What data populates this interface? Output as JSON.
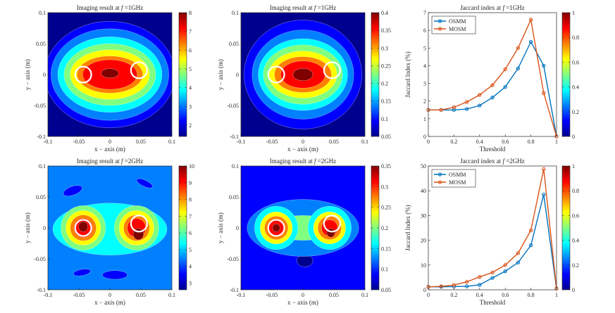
{
  "figure": {
    "colormap_stops": [
      "#00008f",
      "#0000ff",
      "#0080ff",
      "#00ffff",
      "#80ff80",
      "#ffff00",
      "#ff8000",
      "#ff0000",
      "#800000"
    ]
  },
  "chart_data": [
    {
      "id": "p1",
      "type": "heatmap",
      "title_prefix": "Imaging result at ",
      "title_var": "f",
      "title_suffix": " =1GHz",
      "xlabel": "x − axis (m)",
      "ylabel": "y − axis (m)",
      "xlim": [
        -0.1,
        0.1
      ],
      "ylim": [
        -0.1,
        0.1
      ],
      "xticks": [
        "-0.1",
        "-0.05",
        "0",
        "0.05",
        "0.1"
      ],
      "yticks": [
        "0.1",
        "0.05",
        "0",
        "-0.05",
        "-0.1"
      ],
      "colorbar": {
        "min": 1.4,
        "max": 8,
        "ticks": [
          2,
          3,
          4,
          5,
          6,
          7,
          8
        ]
      },
      "target_circles": [
        {
          "x": -0.043,
          "y": 0.0,
          "r": 0.013
        },
        {
          "x": 0.047,
          "y": 0.007,
          "r": 0.013
        }
      ]
    },
    {
      "id": "p2",
      "type": "heatmap",
      "title_prefix": "Imaging result at ",
      "title_var": "f",
      "title_suffix": " =1GHz",
      "xlabel": "x − axis (m)",
      "ylabel": "y − axis (m)",
      "xlim": [
        -0.1,
        0.1
      ],
      "ylim": [
        -0.1,
        0.1
      ],
      "xticks": [
        "-0.1",
        "-0.05",
        "0",
        "0.05",
        "0.1"
      ],
      "yticks": [
        "0.1",
        "0.05",
        "0",
        "-0.05",
        "-0.1"
      ],
      "colorbar": {
        "min": 0.05,
        "max": 0.4,
        "ticks": [
          0.05,
          0.1,
          0.15,
          0.2,
          0.25,
          0.3,
          0.35,
          0.4
        ]
      },
      "target_circles": [
        {
          "x": -0.043,
          "y": 0.0,
          "r": 0.013
        },
        {
          "x": 0.047,
          "y": 0.007,
          "r": 0.013
        }
      ]
    },
    {
      "id": "p3",
      "type": "line",
      "title_prefix": "Jaccard index at ",
      "title_var": "f",
      "title_suffix": " =1GHz",
      "xlabel": "Threshold",
      "ylabel": "Jaccard Index (%)",
      "xlim": [
        0,
        1
      ],
      "ylim": [
        0,
        7
      ],
      "xticks": [
        "0",
        "0.2",
        "0.4",
        "0.6",
        "0.8",
        "1"
      ],
      "yticks": [
        "0",
        "1",
        "2",
        "3",
        "4",
        "5",
        "6",
        "7"
      ],
      "x": [
        0,
        0.1,
        0.2,
        0.3,
        0.4,
        0.5,
        0.6,
        0.7,
        0.8,
        0.9,
        1.0
      ],
      "series": [
        {
          "name": "OSMM",
          "color": "#0072bd",
          "values": [
            1.5,
            1.5,
            1.5,
            1.55,
            1.75,
            2.2,
            2.8,
            3.85,
            5.35,
            4.0,
            0.0
          ]
        },
        {
          "name": "MOSM",
          "color": "#d95319",
          "values": [
            1.5,
            1.5,
            1.65,
            1.95,
            2.35,
            2.9,
            3.8,
            5.0,
            6.6,
            2.45,
            0.0
          ]
        }
      ],
      "legend": "top-left",
      "colorbar": {
        "min": 0,
        "max": 1,
        "ticks": [
          0,
          0.2,
          0.4,
          0.6,
          0.8,
          1
        ]
      }
    },
    {
      "id": "p4",
      "type": "heatmap",
      "title_prefix": "Imaging result at ",
      "title_var": "f",
      "title_suffix": " =2GHz",
      "xlabel": "x − axis (m)",
      "ylabel": "y − axis (m)",
      "xlim": [
        -0.1,
        0.1
      ],
      "ylim": [
        -0.1,
        0.1
      ],
      "xticks": [
        "-0.1",
        "-0.05",
        "0",
        "0.05",
        "0.1"
      ],
      "yticks": [
        "0.1",
        "0.05",
        "0",
        "-0.05",
        "-0.1"
      ],
      "colorbar": {
        "min": 2.6,
        "max": 10,
        "ticks": [
          3,
          4,
          5,
          6,
          7,
          8,
          9,
          10
        ]
      },
      "target_circles": [
        {
          "x": -0.043,
          "y": 0.0,
          "r": 0.013
        },
        {
          "x": 0.047,
          "y": 0.007,
          "r": 0.013
        }
      ]
    },
    {
      "id": "p5",
      "type": "heatmap",
      "title_prefix": "Imaging result at ",
      "title_var": "f",
      "title_suffix": " =2GHz",
      "xlabel": "x − axis (m)",
      "ylabel": "y − axis (m)",
      "xlim": [
        -0.1,
        0.1
      ],
      "ylim": [
        -0.1,
        0.1
      ],
      "xticks": [
        "-0.1",
        "-0.05",
        "0",
        "0.05",
        "0.1"
      ],
      "yticks": [
        "0.1",
        "0.05",
        "0",
        "-0.05",
        "-0.1"
      ],
      "colorbar": {
        "min": 0.05,
        "max": 0.35,
        "ticks": [
          0.05,
          0.1,
          0.15,
          0.2,
          0.25,
          0.3,
          0.35
        ]
      },
      "target_circles": [
        {
          "x": -0.043,
          "y": 0.0,
          "r": 0.013
        },
        {
          "x": 0.047,
          "y": 0.007,
          "r": 0.013
        }
      ]
    },
    {
      "id": "p6",
      "type": "line",
      "title_prefix": "Jaccard index at ",
      "title_var": "f",
      "title_suffix": " =2GHz",
      "xlabel": "Threshold",
      "ylabel": "Jaccard Index (%)",
      "xlim": [
        0,
        1
      ],
      "ylim": [
        0,
        50
      ],
      "xticks": [
        "0",
        "0.2",
        "0.4",
        "0.6",
        "0.8",
        "1"
      ],
      "yticks": [
        "0",
        "10",
        "20",
        "30",
        "40",
        "50"
      ],
      "x": [
        0,
        0.1,
        0.2,
        0.3,
        0.4,
        0.5,
        0.6,
        0.7,
        0.8,
        0.9,
        1.0
      ],
      "series": [
        {
          "name": "OSMM",
          "color": "#0072bd",
          "values": [
            1.2,
            1.2,
            1.3,
            1.4,
            2.0,
            4.8,
            7.5,
            11.0,
            18.0,
            38.5,
            0.5
          ]
        },
        {
          "name": "MOSM",
          "color": "#d95319",
          "values": [
            1.2,
            1.4,
            1.9,
            3.2,
            5.2,
            7.0,
            10.0,
            14.8,
            24.0,
            48.8,
            0.5
          ]
        }
      ],
      "legend": "top-left",
      "colorbar": {
        "min": 0,
        "max": 1,
        "ticks": [
          0,
          0.2,
          0.4,
          0.6,
          0.8,
          1
        ]
      }
    }
  ]
}
